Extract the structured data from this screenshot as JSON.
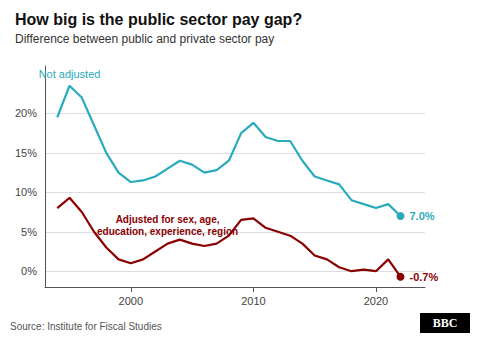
{
  "chart_data": {
    "type": "line",
    "title": "How big is the public sector pay gap?",
    "subtitle": "Difference between public and private sector pay",
    "source": "Source: Institute for Fiscal Studies",
    "logo": "BBC",
    "x": [
      1994,
      1995,
      1996,
      1997,
      1998,
      1999,
      2000,
      2001,
      2002,
      2003,
      2004,
      2005,
      2006,
      2007,
      2008,
      2009,
      2010,
      2011,
      2012,
      2013,
      2014,
      2015,
      2016,
      2017,
      2018,
      2019,
      2020,
      2021,
      2022
    ],
    "series": [
      {
        "name": "Not adjusted",
        "color": "#2AABBB",
        "values": [
          19.5,
          23.5,
          22.0,
          18.5,
          15.0,
          12.5,
          11.3,
          11.5,
          12.0,
          13.0,
          14.0,
          13.5,
          12.5,
          12.8,
          14.0,
          17.5,
          18.8,
          17.0,
          16.5,
          16.5,
          14.0,
          12.0,
          11.5,
          11.0,
          9.0,
          8.5,
          8.0,
          8.5,
          7.0
        ],
        "value_labels": [
          null,
          null,
          null,
          null,
          null,
          null,
          null,
          null,
          null,
          null,
          null,
          null,
          null,
          null,
          null,
          null,
          null,
          null,
          null,
          null,
          null,
          null,
          null,
          null,
          null,
          null,
          null,
          null,
          "7.0%"
        ]
      },
      {
        "name": "Adjusted for sex, age,\neducation, experience, region",
        "color": "#8B0000",
        "values": [
          8.0,
          9.3,
          7.5,
          5.0,
          3.0,
          1.5,
          1.0,
          1.5,
          2.5,
          3.5,
          4.0,
          3.5,
          3.2,
          3.5,
          4.5,
          6.5,
          6.7,
          5.5,
          5.0,
          4.5,
          3.5,
          2.0,
          1.5,
          0.5,
          0.0,
          0.2,
          0.0,
          1.5,
          -0.7
        ],
        "value_labels": [
          null,
          null,
          null,
          null,
          null,
          null,
          null,
          null,
          null,
          null,
          null,
          null,
          null,
          null,
          null,
          null,
          null,
          null,
          null,
          null,
          null,
          null,
          null,
          null,
          null,
          null,
          null,
          null,
          "-0.7%"
        ]
      }
    ],
    "xlim": [
      1993,
      2024
    ],
    "xticks": [
      2000,
      2010,
      2020
    ],
    "ylim": [
      -2,
      26
    ],
    "yticks": [
      {
        "value": 0,
        "label": "0%"
      },
      {
        "value": 5,
        "label": "5%"
      },
      {
        "value": 10,
        "label": "10%"
      },
      {
        "value": 15,
        "label": "15%"
      },
      {
        "value": 20,
        "label": "20%"
      }
    ],
    "grid": true
  }
}
